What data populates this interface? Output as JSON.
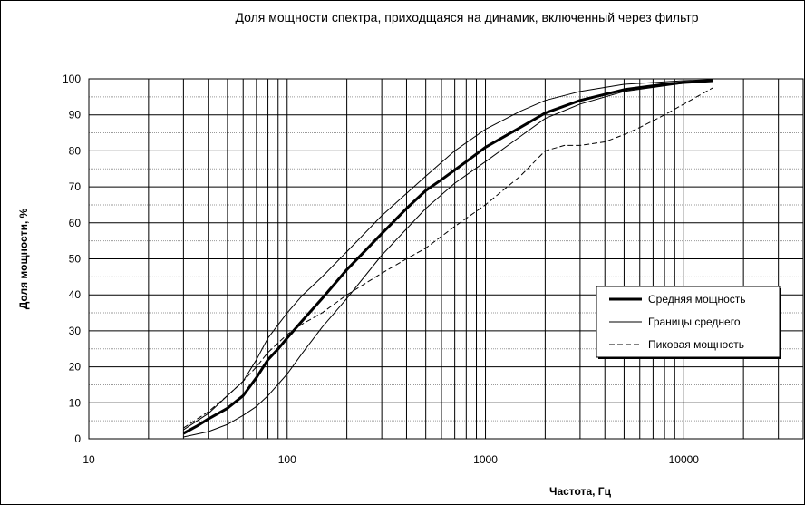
{
  "chart_data": {
    "type": "line",
    "title": "Доля мощности спектра, приходщаяся на динамик, включенный через фильтр",
    "xlabel": "Частота, Гц",
    "ylabel": "Доля мощности, %",
    "x_scale": "log",
    "xlim": [
      10,
      40000
    ],
    "ylim": [
      0,
      100
    ],
    "x_ticks": [
      10,
      100,
      1000,
      10000
    ],
    "x_tick_labels": [
      "10",
      "100",
      "1000",
      "10000"
    ],
    "y_ticks": [
      0,
      10,
      20,
      30,
      40,
      50,
      60,
      70,
      80,
      90,
      100
    ],
    "y_tick_labels": [
      "0",
      "10",
      "20",
      "30",
      "40",
      "50",
      "60",
      "70",
      "80",
      "90",
      "100"
    ],
    "grid": true,
    "legend_position": "right",
    "series": [
      {
        "name": "Средняя мощность",
        "style": "thick",
        "x": [
          30,
          35,
          40,
          50,
          60,
          70,
          80,
          90,
          100,
          120,
          150,
          200,
          300,
          400,
          500,
          600,
          800,
          1000,
          1500,
          2000,
          3000,
          5000,
          8000,
          10000,
          14000
        ],
        "y": [
          1.5,
          3.5,
          5.5,
          8.5,
          12,
          17,
          22,
          25,
          28,
          33,
          39,
          47,
          57,
          64,
          69,
          72,
          77,
          81,
          86.5,
          90.5,
          94,
          97,
          98.5,
          99,
          99.5
        ]
      },
      {
        "name": "Границы среднего",
        "style": "thin",
        "x": [
          30,
          40,
          50,
          60,
          70,
          80,
          100,
          120,
          150,
          200,
          300,
          500,
          700,
          1000,
          1500,
          2000,
          3000,
          5000,
          10000,
          14000
        ],
        "y": [
          2.5,
          7,
          12,
          16,
          22,
          28,
          35,
          40,
          45,
          52,
          62,
          73,
          80,
          86,
          91,
          94,
          96.5,
          98.5,
          99.5,
          99.8
        ]
      },
      {
        "name": "",
        "style": "thin",
        "x": [
          30,
          40,
          50,
          60,
          70,
          80,
          100,
          120,
          150,
          200,
          300,
          500,
          700,
          1000,
          1500,
          2000,
          3000,
          5000,
          10000,
          14000
        ],
        "y": [
          0.5,
          2,
          4,
          6.5,
          9,
          12,
          18,
          24,
          31,
          39,
          51,
          64,
          71,
          77,
          84,
          89,
          93,
          96.5,
          98.8,
          99.5
        ]
      },
      {
        "name": "Пиковая мощность",
        "style": "dashed",
        "x": [
          30,
          40,
          50,
          60,
          70,
          80,
          100,
          120,
          150,
          200,
          300,
          400,
          500,
          700,
          1000,
          1500,
          2000,
          2500,
          3000,
          4000,
          5000,
          6000,
          8000,
          10000,
          14000
        ],
        "y": [
          3,
          7.5,
          12,
          16,
          20,
          24,
          29,
          32,
          35,
          40,
          46,
          50,
          53,
          59,
          65,
          73,
          80,
          81.5,
          81.5,
          82.5,
          84.5,
          86.5,
          90,
          93,
          97.5
        ]
      }
    ]
  }
}
